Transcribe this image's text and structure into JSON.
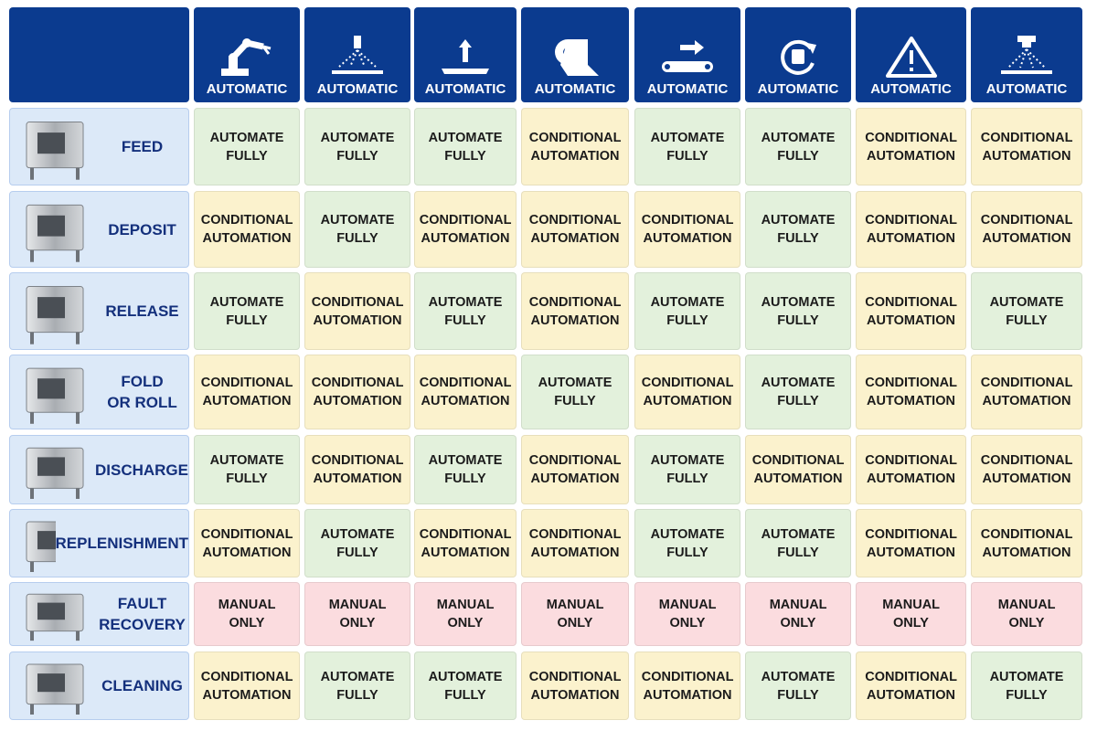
{
  "header": {
    "columns": [
      "AUTOMATIC",
      "AUTOMATIC",
      "AUTOMATIC",
      "AUTOMATIC",
      "AUTOMATIC",
      "AUTOMATIC",
      "AUTOMATIC",
      "AUTOMATIC"
    ]
  },
  "cell_colors": {
    "AUTOMATE FULLY": "#e3f1dc",
    "CONDITIONAL AUTOMATION": "#fbf2cd",
    "MANUAL ONLY": "#fbdcdf"
  },
  "rows": [
    {
      "label": [
        "FEED"
      ],
      "cells": [
        "AUTOMATE FULLY",
        "AUTOMATE FULLY",
        "AUTOMATE FULLY",
        "CONDITIONAL AUTOMATION",
        "AUTOMATE FULLY",
        "AUTOMATE FULLY",
        "CONDITIONAL AUTOMATION",
        "CONDITIONAL AUTOMATION"
      ]
    },
    {
      "label": [
        "DEPOSIT"
      ],
      "cells": [
        "CONDITIONAL AUTOMATION",
        "AUTOMATE FULLY",
        "CONDITIONAL AUTOMATION",
        "CONDITIONAL AUTOMATION",
        "CONDITIONAL AUTOMATION",
        "AUTOMATE FULLY",
        "CONDITIONAL AUTOMATION",
        "CONDITIONAL AUTOMATION"
      ]
    },
    {
      "label": [
        "RELEASE"
      ],
      "cells": [
        "AUTOMATE FULLY",
        "CONDITIONAL AUTOMATION",
        "AUTOMATE FULLY",
        "CONDITIONAL AUTOMATION",
        "AUTOMATE FULLY",
        "AUTOMATE FULLY",
        "CONDITIONAL AUTOMATION",
        "AUTOMATE FULLY"
      ]
    },
    {
      "label": [
        "FOLD",
        "OR ROLL"
      ],
      "cells": [
        "CONDITIONAL AUTOMATION",
        "CONDITIONAL AUTOMATION",
        "CONDITIONAL AUTOMATION",
        "AUTOMATE FULLY",
        "CONDITIONAL AUTOMATION",
        "AUTOMATE FULLY",
        "CONDITIONAL AUTOMATION",
        "CONDITIONAL AUTOMATION"
      ]
    },
    {
      "label": [
        "DISCHARGE"
      ],
      "cells": [
        "AUTOMATE FULLY",
        "CONDITIONAL AUTOMATION",
        "AUTOMATE FULLY",
        "CONDITIONAL AUTOMATION",
        "AUTOMATE FULLY",
        "CONDITIONAL AUTOMATION",
        "CONDITIONAL AUTOMATION",
        "CONDITIONAL AUTOMATION"
      ]
    },
    {
      "label": [
        "REPLENISHMENT"
      ],
      "cells": [
        "CONDITIONAL AUTOMATION",
        "AUTOMATE FULLY",
        "CONDITIONAL AUTOMATION",
        "CONDITIONAL AUTOMATION",
        "AUTOMATE FULLY",
        "AUTOMATE FULLY",
        "CONDITIONAL AUTOMATION",
        "CONDITIONAL AUTOMATION"
      ]
    },
    {
      "label": [
        "FAULT",
        "RECOVERY"
      ],
      "cells": [
        "MANUAL ONLY",
        "MANUAL ONLY",
        "MANUAL ONLY",
        "MANUAL ONLY",
        "MANUAL ONLY",
        "MANUAL ONLY",
        "MANUAL ONLY",
        "MANUAL ONLY"
      ]
    },
    {
      "label": [
        "CLEANING"
      ],
      "cells": [
        "CONDITIONAL AUTOMATION",
        "AUTOMATE FULLY",
        "AUTOMATE FULLY",
        "CONDITIONAL AUTOMATION",
        "CONDITIONAL AUTOMATION",
        "AUTOMATE FULLY",
        "CONDITIONAL AUTOMATION",
        "AUTOMATE FULLY"
      ]
    }
  ]
}
